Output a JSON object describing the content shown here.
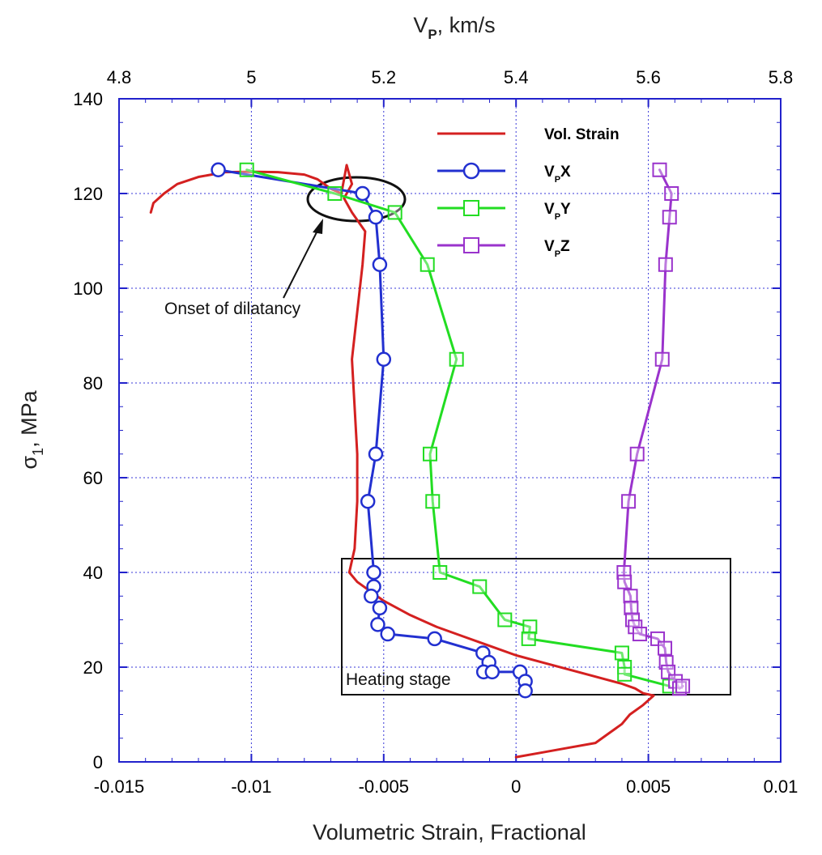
{
  "chart_data": {
    "type": "scatter",
    "xlabel": "Volumetric Strain, Fractional",
    "x2label": "V_P, km/s",
    "x2label_main": "V",
    "x2label_sub": "P",
    "x2label_rest": ", km/s",
    "ylabel_main": "σ",
    "ylabel_sub": "1",
    "ylabel_rest": ", MPa",
    "xlim": [
      -0.015,
      0.01
    ],
    "x2lim": [
      4.8,
      5.8
    ],
    "ylim": [
      0,
      140
    ],
    "x_ticks": [
      "-0.015",
      "-0.01",
      "-0.005",
      "0",
      "0.005",
      "0.01"
    ],
    "x2_ticks": [
      "4.8",
      "5",
      "5.2",
      "5.4",
      "5.6",
      "5.8"
    ],
    "y_ticks": [
      "0",
      "20",
      "40",
      "60",
      "80",
      "100",
      "120",
      "140"
    ],
    "grid": true,
    "legend": {
      "placement": "top-right",
      "entries": [
        {
          "label_main": "Vol. Strain",
          "label_sub": "",
          "label_rest": "",
          "marker": "none",
          "color": "#d42020"
        },
        {
          "label_main": "V",
          "label_sub": "P",
          "label_rest": "X",
          "marker": "circle",
          "color": "#2230d0"
        },
        {
          "label_main": "V",
          "label_sub": "P",
          "label_rest": "Y",
          "marker": "square",
          "color": "#22dd22"
        },
        {
          "label_main": "V",
          "label_sub": "P",
          "label_rest": "Z",
          "marker": "square",
          "color": "#9a33cc"
        }
      ]
    },
    "annotations": {
      "dilatancy_label": "Onset of dilatancy",
      "heating_label": "Heating stage"
    },
    "series": [
      {
        "name": "Vol. Strain",
        "axis": "bottom",
        "color": "#d42020",
        "marker": "none",
        "x": [
          0.0,
          0.001,
          0.002,
          0.003,
          0.0035,
          0.004,
          0.0043,
          0.0048,
          0.0052,
          0.0048,
          0.0045,
          0.004,
          0.003,
          0.002,
          0.001,
          0.0,
          -0.001,
          -0.002,
          -0.003,
          -0.004,
          -0.005,
          -0.006,
          -0.0063,
          -0.0061,
          -0.006,
          -0.006,
          -0.0061,
          -0.0062,
          -0.006,
          -0.0058,
          -0.0057,
          -0.0062,
          -0.0065,
          -0.0062,
          -0.0064,
          -0.0066,
          -0.007,
          -0.0075,
          -0.008,
          -0.009,
          -0.01,
          -0.011,
          -0.012,
          -0.0128,
          -0.0133,
          -0.0137,
          -0.0138
        ],
        "y": [
          1,
          2,
          3,
          4,
          6,
          8,
          10,
          12,
          14,
          14.5,
          15.5,
          16.5,
          18,
          19.5,
          21,
          22.5,
          24.5,
          26.5,
          28.5,
          31,
          34,
          38,
          40,
          45,
          55,
          65,
          75,
          85,
          95,
          105,
          112,
          116,
          119,
          122,
          126,
          120,
          121,
          123,
          124,
          124.5,
          124.6,
          124.5,
          123.5,
          122,
          120,
          118,
          116
        ]
      },
      {
        "name": "VPX",
        "axis": "top",
        "color": "#2230d0",
        "marker": "circle",
        "x": [
          4.95,
          5.168,
          5.188,
          5.194,
          5.2,
          5.188,
          5.176,
          5.185,
          5.185,
          5.181,
          5.194,
          5.191,
          5.206,
          5.277,
          5.35,
          5.359,
          5.351,
          5.364,
          5.406,
          5.414,
          5.414
        ],
        "y": [
          125,
          120,
          115,
          105,
          85,
          65,
          55,
          40,
          37,
          35,
          32.5,
          29,
          27,
          26,
          23,
          21,
          19,
          19,
          19,
          17,
          15
        ]
      },
      {
        "name": "VPY",
        "axis": "top",
        "color": "#22dd22",
        "marker": "square",
        "x": [
          4.993,
          5.126,
          5.217,
          5.266,
          5.31,
          5.27,
          5.274,
          5.285,
          5.345,
          5.383,
          5.421,
          5.419,
          5.56,
          5.564,
          5.564,
          5.632
        ],
        "y": [
          125,
          120,
          116,
          105,
          85,
          65,
          55,
          40,
          37,
          30,
          28.5,
          26,
          23,
          20,
          18.5,
          16
        ]
      },
      {
        "name": "VPZ",
        "axis": "top",
        "color": "#9a33cc",
        "marker": "square",
        "x": [
          5.617,
          5.635,
          5.632,
          5.626,
          5.621,
          5.583,
          5.57,
          5.563,
          5.564,
          5.573,
          5.574,
          5.576,
          5.58,
          5.587,
          5.614,
          5.625,
          5.627,
          5.63,
          5.641,
          5.647,
          5.652
        ],
        "y": [
          125,
          120,
          115,
          105,
          85,
          65,
          55,
          40,
          38,
          35,
          32.5,
          30,
          28.5,
          27,
          26,
          24,
          21,
          19,
          17,
          15.5,
          16
        ]
      }
    ]
  }
}
